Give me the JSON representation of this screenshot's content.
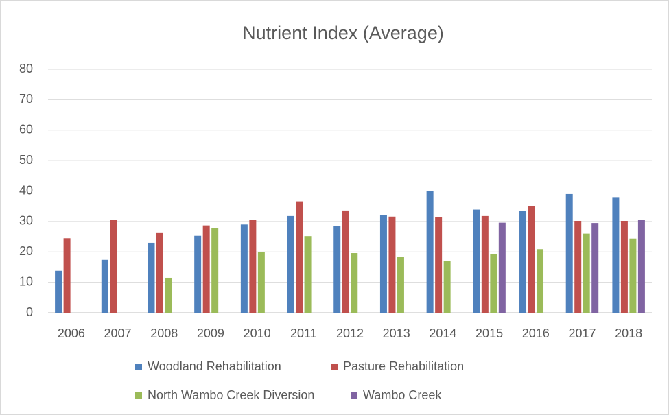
{
  "chart_data": {
    "type": "bar",
    "title": "Nutrient Index (Average)",
    "categories": [
      "2006",
      "2007",
      "2008",
      "2009",
      "2010",
      "2011",
      "2012",
      "2013",
      "2014",
      "2015",
      "2016",
      "2017",
      "2018"
    ],
    "series": [
      {
        "name": "Woodland Rehabilitation",
        "color": "#4f81bd",
        "values": [
          13.8,
          17.4,
          23,
          25.3,
          29,
          31.8,
          28.5,
          32,
          40,
          33.9,
          33.4,
          39,
          38
        ]
      },
      {
        "name": "Pasture Rehabilitation",
        "color": "#c0504d",
        "values": [
          24.5,
          30.5,
          26.4,
          28.7,
          30.5,
          36.6,
          33.6,
          31.6,
          31.5,
          31.8,
          35,
          30.2,
          30.2
        ]
      },
      {
        "name": "North Wambo Creek Diversion",
        "color": "#9bbb59",
        "values": [
          null,
          null,
          11.5,
          27.8,
          20,
          25.2,
          19.6,
          18.3,
          17.1,
          19.3,
          20.9,
          26,
          24.4
        ]
      },
      {
        "name": "Wambo Creek",
        "color": "#8064a2",
        "values": [
          null,
          null,
          null,
          null,
          null,
          null,
          null,
          null,
          null,
          29.6,
          null,
          29.5,
          30.6
        ]
      }
    ],
    "ylim": [
      0,
      80
    ],
    "yticks": [
      0,
      10,
      20,
      30,
      40,
      50,
      60,
      70,
      80
    ],
    "grid": true,
    "legend": "bottom"
  }
}
